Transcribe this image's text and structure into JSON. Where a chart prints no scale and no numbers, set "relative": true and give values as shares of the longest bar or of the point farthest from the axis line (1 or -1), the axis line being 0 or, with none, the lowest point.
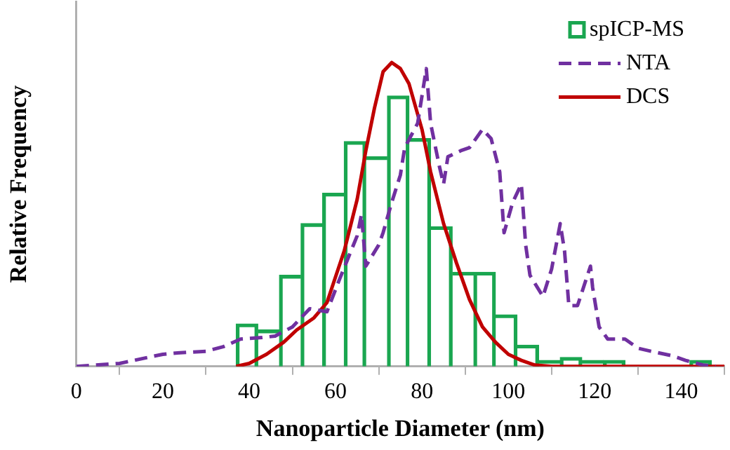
{
  "chart_data": {
    "type": "bar",
    "xlabel": "Nanoparticle Diameter (nm)",
    "ylabel": "Relative Frequency",
    "relative": true,
    "xlim": [
      0,
      150
    ],
    "xticks": [
      0,
      20,
      40,
      60,
      80,
      100,
      120,
      140
    ],
    "legend": "top right",
    "grid": false,
    "series": [
      {
        "name": "spICP-MS",
        "color": "#1aa650",
        "x": [
          39.5,
          44.5,
          49.5,
          54.5,
          59.5,
          64.5,
          69.5,
          74.5,
          79.5,
          84.5,
          89.5,
          94.5,
          99.5,
          104.5,
          109.5,
          114.5,
          119.5,
          124.5,
          129.5,
          134.5,
          139.5,
          144.5
        ],
        "values": [
          0.14,
          0.12,
          0.3,
          0.47,
          0.57,
          0.74,
          0.69,
          0.89,
          0.75,
          0.46,
          0.31,
          0.31,
          0.17,
          0.07,
          0.02,
          0.03,
          0.02,
          0.02,
          0,
          0,
          0,
          0.02
        ]
      },
      {
        "name": "NTA",
        "type": "line",
        "line_style": "dashed",
        "color": "#7030a0",
        "x": [
          0,
          10,
          20,
          24,
          30,
          34,
          38,
          43,
          46,
          50,
          54,
          58,
          61,
          63,
          65,
          66,
          67,
          70,
          71,
          73,
          75,
          76,
          79,
          81,
          82,
          84,
          85,
          86,
          89,
          91,
          94,
          96,
          98,
          99,
          101,
          103,
          104,
          105,
          108,
          110,
          112,
          113,
          114,
          116,
          119,
          119.5,
          121,
          123,
          127,
          130,
          133,
          138,
          141,
          145,
          148
        ],
        "values": [
          0,
          0.01,
          0.04,
          0.045,
          0.05,
          0.065,
          0.09,
          0.095,
          0.1,
          0.13,
          0.19,
          0.18,
          0.29,
          0.36,
          0.43,
          0.5,
          0.33,
          0.4,
          0.44,
          0.54,
          0.63,
          0.72,
          0.8,
          0.98,
          0.8,
          0.66,
          0.6,
          0.69,
          0.71,
          0.72,
          0.78,
          0.75,
          0.64,
          0.44,
          0.54,
          0.6,
          0.4,
          0.3,
          0.23,
          0.32,
          0.47,
          0.38,
          0.2,
          0.2,
          0.33,
          0.26,
          0.13,
          0.09,
          0.09,
          0.06,
          0.05,
          0.035,
          0.02,
          0.005,
          0
        ]
      },
      {
        "name": "DCS",
        "type": "line",
        "line_style": "solid",
        "color": "#c00000",
        "x": [
          37,
          40,
          44,
          48,
          51,
          55,
          58,
          62,
          65,
          67,
          69,
          71,
          73,
          75,
          77,
          80,
          82,
          85,
          88,
          91,
          94,
          97,
          100,
          103,
          106,
          110,
          120,
          130,
          140,
          150
        ],
        "values": [
          0,
          0.01,
          0.04,
          0.08,
          0.12,
          0.16,
          0.21,
          0.38,
          0.55,
          0.71,
          0.85,
          0.97,
          1,
          0.98,
          0.93,
          0.78,
          0.64,
          0.47,
          0.34,
          0.22,
          0.13,
          0.08,
          0.04,
          0.02,
          0.005,
          0,
          0,
          0,
          0,
          0
        ]
      }
    ]
  }
}
